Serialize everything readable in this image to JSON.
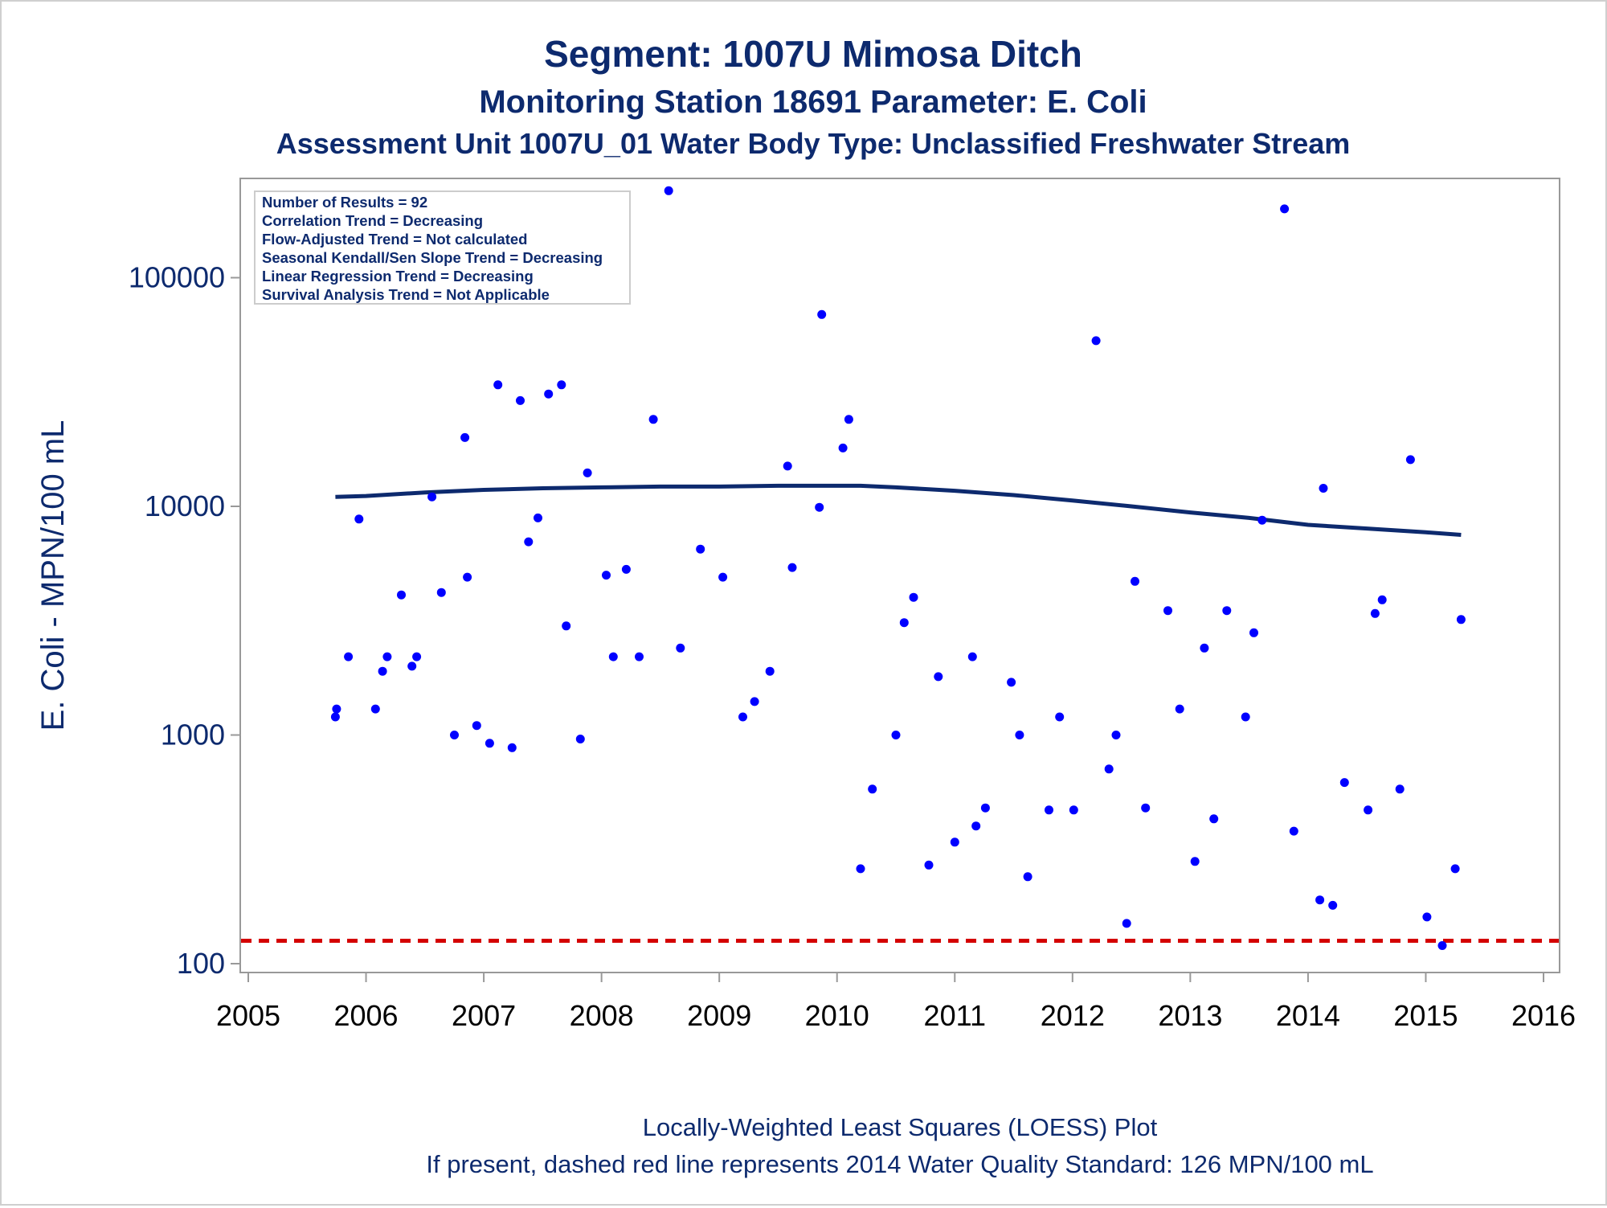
{
  "titles": {
    "line1": "Segment: 1007U  Mimosa Ditch",
    "line2": "Monitoring Station 18691 Parameter: E. Coli",
    "line3": "Assessment Unit 1007U_01   Water Body Type: Unclassified Freshwater Stream"
  },
  "stats_box": [
    "Number of Results = 92",
    "Correlation Trend = Decreasing",
    "Flow-Adjusted Trend = Not calculated",
    "Seasonal Kendall/Sen Slope Trend = Decreasing",
    "Linear Regression Trend = Decreasing",
    "Survival Analysis Trend = Not Applicable"
  ],
  "footnotes": {
    "line1": "Locally-Weighted Least Squares (LOESS) Plot",
    "line2": "If present, dashed red line represents 2014 Water Quality Standard: 126 MPN/100 mL"
  },
  "colors": {
    "text": "#0d2a6e",
    "points": "#0000ff",
    "loess": "#0d2a6e",
    "standard_line": "#d40000",
    "axis": "#999999"
  },
  "chart_data": {
    "type": "scatter",
    "yscale": "log",
    "ylabel": "E. Coli - MPN/100 mL",
    "xlabel": "",
    "xlim": [
      2005,
      2016
    ],
    "ylim": [
      100,
      250000
    ],
    "x_ticks": [
      "2005",
      "2006",
      "2007",
      "2008",
      "2009",
      "2010",
      "2011",
      "2012",
      "2013",
      "2014",
      "2015",
      "2016"
    ],
    "y_ticks": [
      "100",
      "1000",
      "10000",
      "100000"
    ],
    "grid": false,
    "legend": "none",
    "standard_line": {
      "value": 126,
      "style": "dashed",
      "color": "#d40000"
    },
    "points": [
      [
        2005.74,
        1200
      ],
      [
        2005.75,
        1300
      ],
      [
        2005.85,
        2200
      ],
      [
        2005.94,
        8800
      ],
      [
        2006.08,
        1300
      ],
      [
        2006.14,
        1900
      ],
      [
        2006.18,
        2200
      ],
      [
        2006.3,
        4100
      ],
      [
        2006.39,
        2000
      ],
      [
        2006.43,
        2200
      ],
      [
        2006.56,
        11000
      ],
      [
        2006.64,
        4200
      ],
      [
        2006.75,
        1000
      ],
      [
        2006.84,
        20000
      ],
      [
        2006.86,
        4900
      ],
      [
        2006.94,
        1100
      ],
      [
        2007.05,
        920
      ],
      [
        2007.12,
        34000
      ],
      [
        2007.24,
        880
      ],
      [
        2007.31,
        29000
      ],
      [
        2007.38,
        7000
      ],
      [
        2007.46,
        8900
      ],
      [
        2007.55,
        31000
      ],
      [
        2007.66,
        34000
      ],
      [
        2007.7,
        3000
      ],
      [
        2007.82,
        960
      ],
      [
        2007.88,
        14000
      ],
      [
        2008.04,
        5000
      ],
      [
        2008.1,
        2200
      ],
      [
        2008.21,
        5300
      ],
      [
        2008.32,
        2200
      ],
      [
        2008.44,
        24000
      ],
      [
        2008.57,
        240000
      ],
      [
        2008.67,
        2400
      ],
      [
        2008.84,
        6500
      ],
      [
        2009.03,
        4900
      ],
      [
        2009.2,
        1200
      ],
      [
        2009.3,
        1400
      ],
      [
        2009.43,
        1900
      ],
      [
        2009.58,
        15000
      ],
      [
        2009.62,
        5400
      ],
      [
        2009.85,
        9900
      ],
      [
        2009.87,
        69000
      ],
      [
        2010.05,
        18000
      ],
      [
        2010.1,
        24000
      ],
      [
        2010.2,
        260
      ],
      [
        2010.3,
        580
      ],
      [
        2010.5,
        1000
      ],
      [
        2010.57,
        3100
      ],
      [
        2010.65,
        4000
      ],
      [
        2010.78,
        270
      ],
      [
        2010.86,
        1800
      ],
      [
        2011.0,
        340
      ],
      [
        2011.15,
        2200
      ],
      [
        2011.18,
        400
      ],
      [
        2011.26,
        480
      ],
      [
        2011.48,
        1700
      ],
      [
        2011.55,
        1000
      ],
      [
        2011.62,
        240
      ],
      [
        2011.8,
        470
      ],
      [
        2011.89,
        1200
      ],
      [
        2012.01,
        470
      ],
      [
        2012.2,
        53000
      ],
      [
        2012.31,
        710
      ],
      [
        2012.37,
        1000
      ],
      [
        2012.46,
        150
      ],
      [
        2012.53,
        4700
      ],
      [
        2012.62,
        480
      ],
      [
        2012.81,
        3500
      ],
      [
        2012.91,
        1300
      ],
      [
        2013.04,
        280
      ],
      [
        2013.12,
        2400
      ],
      [
        2013.2,
        430
      ],
      [
        2013.31,
        3500
      ],
      [
        2013.47,
        1200
      ],
      [
        2013.54,
        2800
      ],
      [
        2013.61,
        8700
      ],
      [
        2013.8,
        200000
      ],
      [
        2013.88,
        380
      ],
      [
        2014.1,
        190
      ],
      [
        2014.13,
        12000
      ],
      [
        2014.21,
        180
      ],
      [
        2014.31,
        620
      ],
      [
        2014.51,
        470
      ],
      [
        2014.57,
        3400
      ],
      [
        2014.63,
        3900
      ],
      [
        2014.78,
        580
      ],
      [
        2014.87,
        16000
      ],
      [
        2015.01,
        160
      ],
      [
        2015.14,
        120
      ],
      [
        2015.25,
        260
      ],
      [
        2015.3,
        3200
      ]
    ],
    "loess": {
      "x": [
        2005.74,
        2006.0,
        2006.5,
        2007.0,
        2007.5,
        2008.0,
        2008.5,
        2009.0,
        2009.5,
        2009.9,
        2010.2,
        2010.5,
        2011.0,
        2011.5,
        2012.0,
        2012.5,
        2013.0,
        2013.5,
        2014.0,
        2014.5,
        2015.0,
        2015.3
      ],
      "y": [
        11000,
        11100,
        11500,
        11800,
        12000,
        12100,
        12200,
        12200,
        12300,
        12300,
        12300,
        12100,
        11700,
        11200,
        10600,
        10000,
        9400,
        8900,
        8300,
        8000,
        7700,
        7500
      ]
    }
  }
}
